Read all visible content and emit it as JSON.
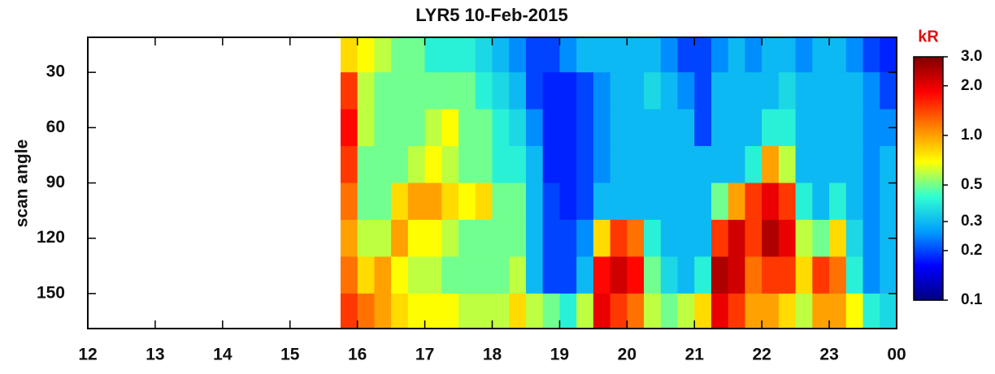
{
  "chart_data": {
    "type": "heatmap",
    "title": "LYR5  10-Feb-2015",
    "ylabel": "scan angle",
    "colorbar_label": "kR",
    "xlim": [
      12,
      24
    ],
    "xticks": [
      12,
      13,
      14,
      15,
      16,
      17,
      18,
      19,
      20,
      21,
      22,
      23,
      {
        "value": 24,
        "label": "00"
      }
    ],
    "ylim": [
      169,
      11
    ],
    "yticks": [
      30,
      60,
      90,
      120,
      150
    ],
    "zlim": [
      0.1,
      3.0
    ],
    "zscale": "log",
    "zticks": [
      0.1,
      0.2,
      0.3,
      0.5,
      {
        "value": 1.0,
        "label": "1.0"
      },
      {
        "value": 2.0,
        "label": "2.0"
      },
      {
        "value": 3.0,
        "label": "3.0"
      }
    ],
    "colors": [
      "#00007f",
      "#0000ff",
      "#00a0ff",
      "#30ffd0",
      "#ffff00",
      "#ff8000",
      "#ff0000",
      "#7f0000"
    ],
    "xbins": [
      15.75,
      16,
      16.25,
      16.5,
      16.75,
      17,
      17.25,
      17.5,
      17.75,
      18,
      18.25,
      18.5,
      18.75,
      19,
      19.25,
      19.5,
      19.75,
      20,
      20.25,
      20.5,
      20.75,
      21,
      21.25,
      21.5,
      21.75,
      22,
      22.25,
      22.5,
      22.75,
      23,
      23.25,
      23.5,
      23.75,
      24
    ],
    "ybins": [
      11,
      30,
      50,
      70,
      90,
      110,
      130,
      150,
      169
    ],
    "values": [
      [
        0.8,
        0.7,
        0.6,
        0.5,
        0.5,
        0.4,
        0.4,
        0.4,
        0.35,
        0.3,
        0.25,
        0.2,
        0.2,
        0.25,
        0.3,
        0.3,
        0.3,
        0.3,
        0.3,
        0.25,
        0.2,
        0.2,
        0.25,
        0.3,
        0.25,
        0.3,
        0.3,
        0.25,
        0.3,
        0.3,
        0.25,
        0.2,
        0.18
      ],
      [
        1.5,
        0.6,
        0.5,
        0.5,
        0.5,
        0.5,
        0.5,
        0.5,
        0.4,
        0.35,
        0.3,
        0.2,
        0.18,
        0.18,
        0.2,
        0.25,
        0.3,
        0.3,
        0.35,
        0.3,
        0.25,
        0.2,
        0.3,
        0.3,
        0.3,
        0.3,
        0.35,
        0.3,
        0.3,
        0.3,
        0.3,
        0.25,
        0.2
      ],
      [
        1.8,
        0.6,
        0.5,
        0.5,
        0.5,
        0.6,
        0.7,
        0.5,
        0.5,
        0.4,
        0.35,
        0.25,
        0.18,
        0.18,
        0.2,
        0.25,
        0.3,
        0.3,
        0.3,
        0.3,
        0.3,
        0.2,
        0.3,
        0.3,
        0.3,
        0.4,
        0.4,
        0.3,
        0.3,
        0.3,
        0.3,
        0.25,
        0.25
      ],
      [
        1.5,
        0.5,
        0.5,
        0.5,
        0.6,
        0.7,
        0.6,
        0.5,
        0.5,
        0.4,
        0.4,
        0.3,
        0.18,
        0.18,
        0.2,
        0.25,
        0.3,
        0.3,
        0.3,
        0.3,
        0.3,
        0.3,
        0.3,
        0.3,
        0.4,
        1.0,
        0.6,
        0.3,
        0.3,
        0.3,
        0.3,
        0.25,
        0.3
      ],
      [
        1.2,
        0.5,
        0.5,
        0.8,
        1.0,
        1.0,
        0.8,
        0.7,
        0.8,
        0.5,
        0.5,
        0.3,
        0.2,
        0.18,
        0.2,
        0.3,
        0.3,
        0.3,
        0.3,
        0.3,
        0.3,
        0.3,
        0.5,
        1.0,
        1.5,
        2.0,
        1.5,
        0.4,
        0.3,
        0.4,
        0.3,
        0.25,
        0.3
      ],
      [
        1.0,
        0.6,
        0.6,
        1.0,
        0.7,
        0.7,
        0.6,
        0.5,
        0.5,
        0.5,
        0.5,
        0.3,
        0.2,
        0.2,
        0.25,
        0.8,
        1.5,
        1.2,
        0.4,
        0.3,
        0.3,
        0.3,
        1.5,
        2.2,
        1.5,
        2.5,
        2.0,
        0.6,
        0.5,
        0.8,
        0.35,
        0.25,
        0.3
      ],
      [
        1.2,
        0.8,
        1.0,
        0.7,
        0.6,
        0.6,
        0.5,
        0.5,
        0.5,
        0.5,
        0.6,
        0.3,
        0.2,
        0.2,
        0.3,
        1.8,
        2.2,
        1.8,
        0.5,
        0.35,
        0.3,
        0.4,
        2.5,
        2.2,
        1.2,
        1.5,
        1.5,
        0.8,
        1.5,
        1.2,
        0.4,
        0.25,
        0.3
      ],
      [
        1.5,
        1.2,
        1.0,
        0.8,
        0.7,
        0.7,
        0.7,
        0.6,
        0.6,
        0.6,
        0.8,
        0.6,
        0.5,
        0.4,
        0.6,
        2.0,
        1.5,
        1.2,
        0.6,
        0.5,
        0.6,
        0.8,
        2.0,
        1.5,
        1.0,
        1.0,
        0.8,
        0.6,
        1.0,
        1.0,
        0.7,
        0.4,
        0.35
      ]
    ]
  }
}
